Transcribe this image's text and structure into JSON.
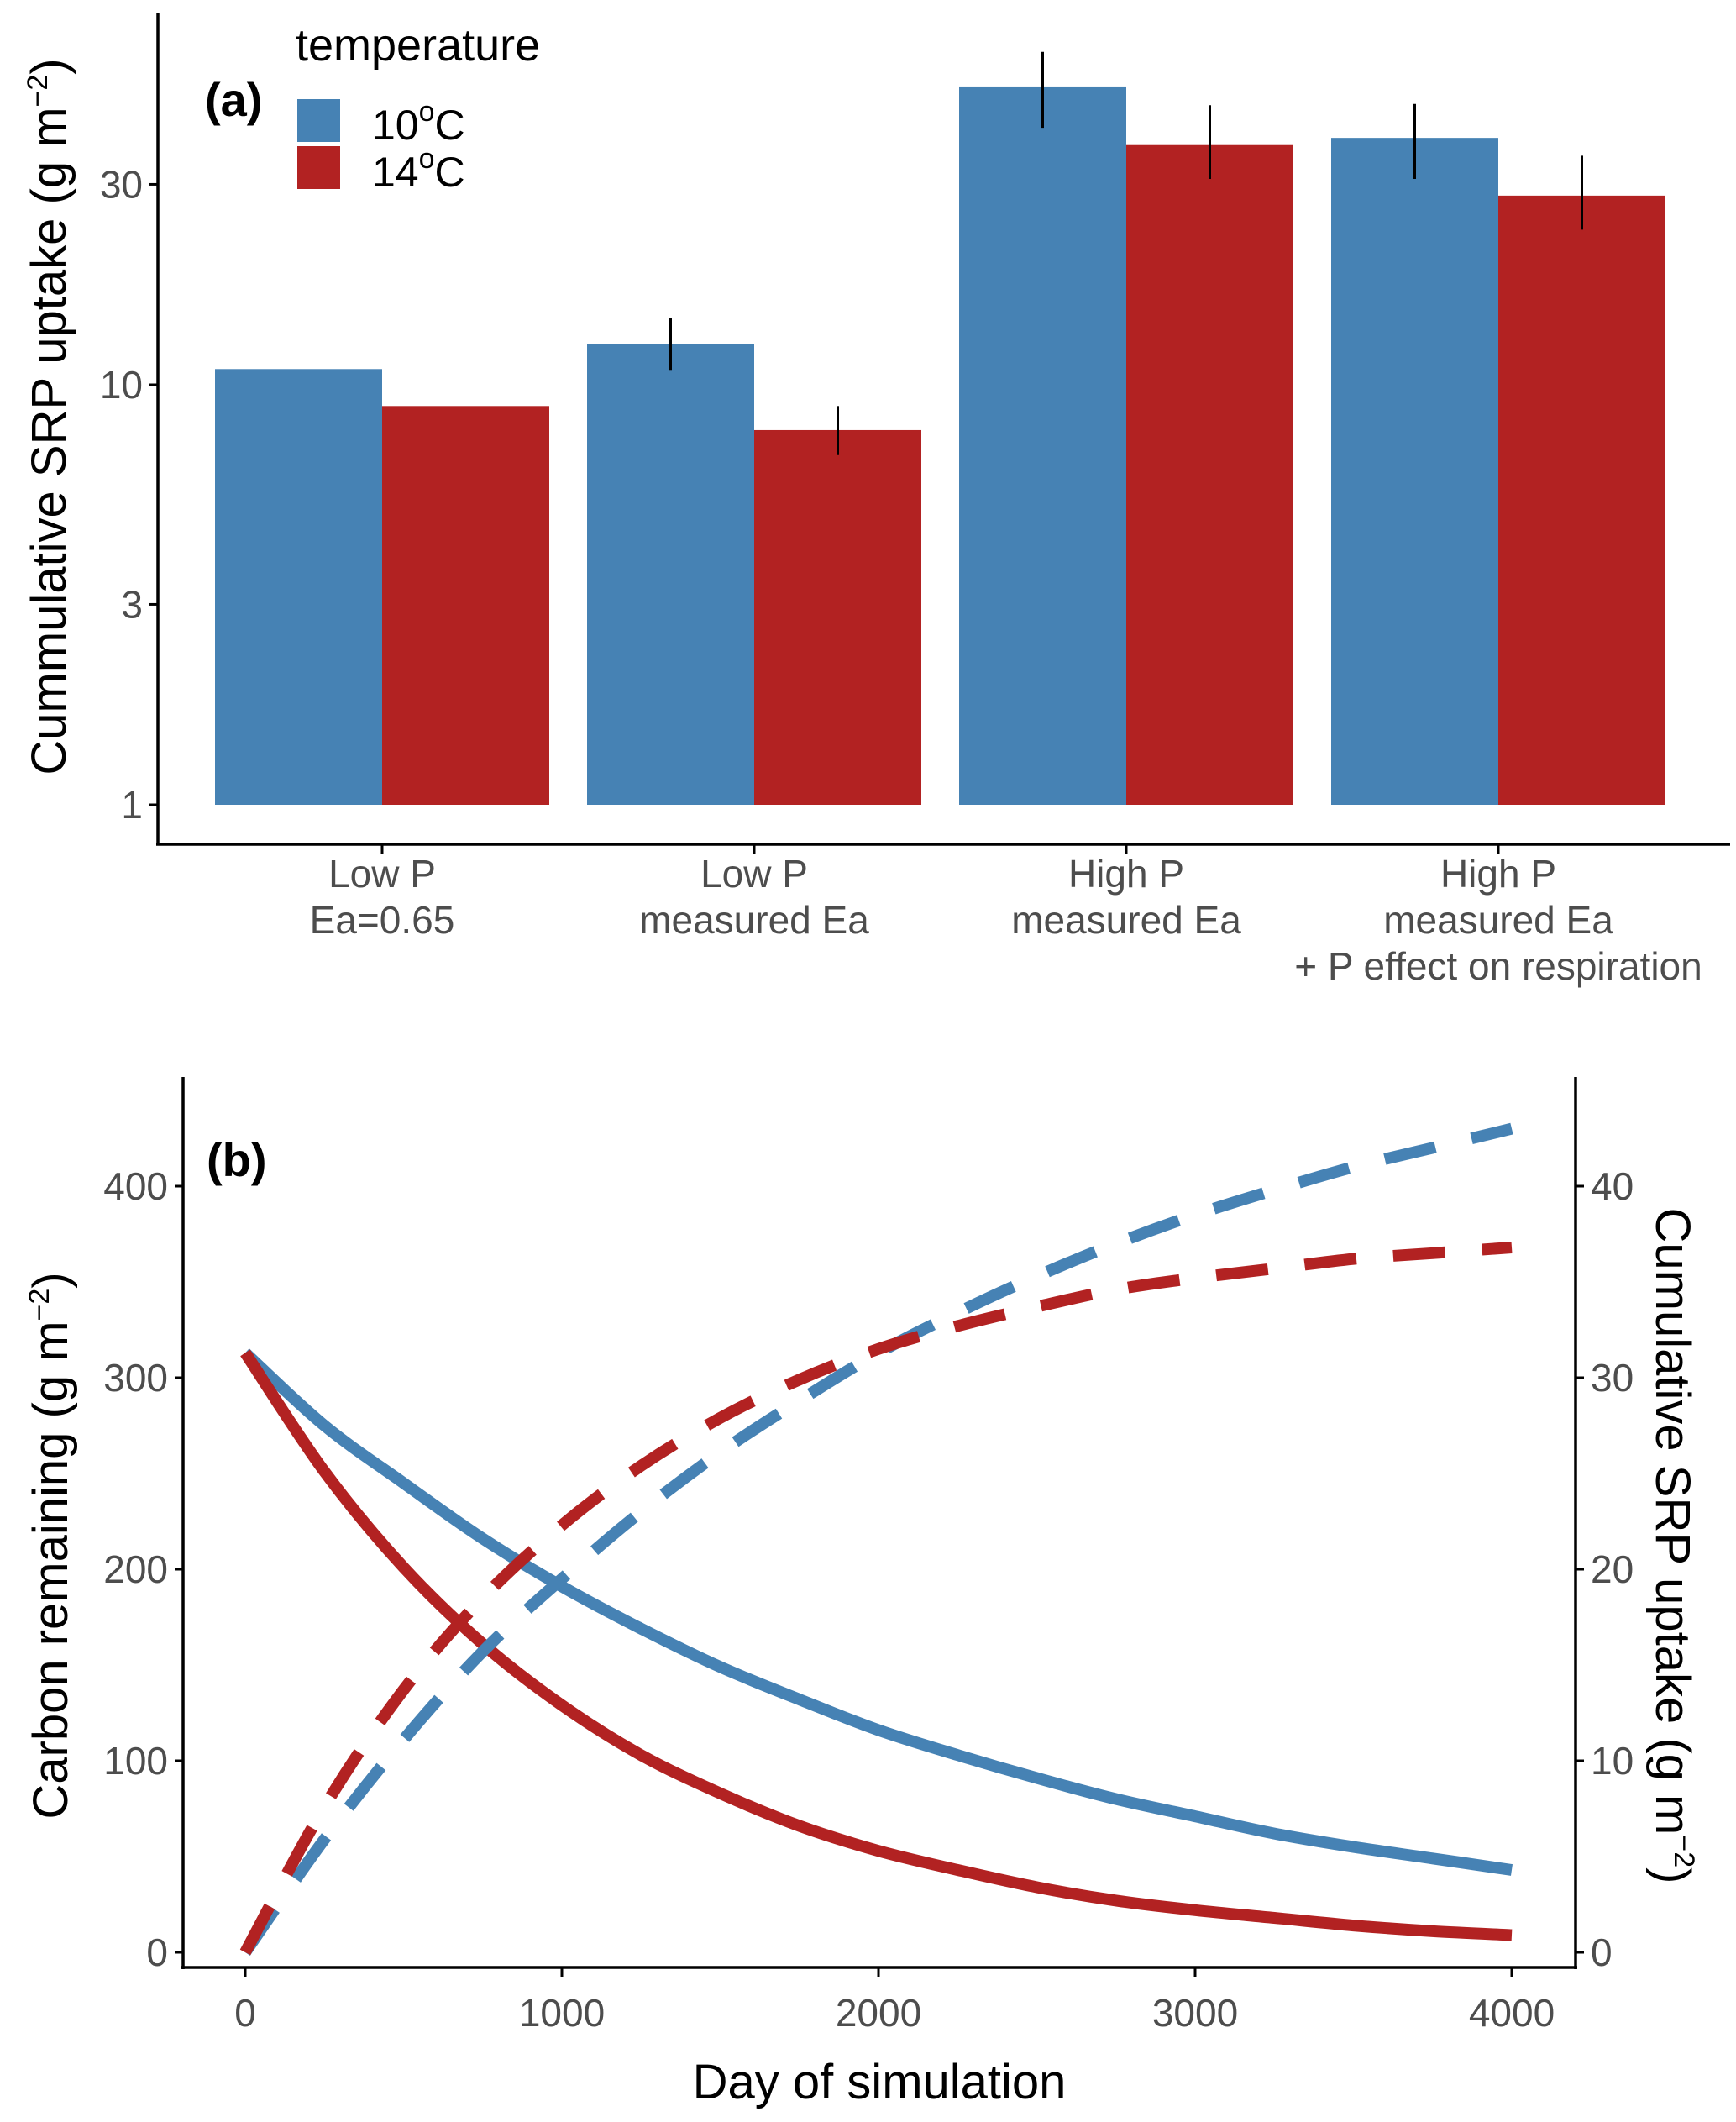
{
  "figure": {
    "panels": [
      "(a)",
      "(b)"
    ]
  },
  "colors": {
    "temp_10": "#4682B4",
    "temp_14": "#B22222",
    "axis": "#000000",
    "tick_text": "#4d4d4d"
  },
  "chart_data": [
    {
      "type": "bar",
      "panel_label": "(a)",
      "title": "",
      "xlabel": "",
      "ylabel": "Cummulative SRP uptake (g m",
      "ylabel_sup": "−2",
      "ylabel_suffix": ")",
      "yscale": "log10",
      "ylim": [
        0.85,
        75
      ],
      "yticks": [
        1,
        3,
        10,
        30
      ],
      "ytick_labels": [
        "1",
        "3",
        "10",
        "30"
      ],
      "bar_base": 1,
      "categories": [
        [
          "Low P",
          "Ea=0.65"
        ],
        [
          "Low P",
          "measured Ea"
        ],
        [
          "High P",
          "measured Ea"
        ],
        [
          "High P",
          "measured Ea",
          "+ P effect on respiration"
        ]
      ],
      "legend": {
        "title": "temperature",
        "position": "top-left",
        "entries": [
          {
            "label": "10",
            "sup": "o",
            "suffix": "C",
            "color_key": "temp_10"
          },
          {
            "label": "14",
            "sup": "o",
            "suffix": "C",
            "color_key": "temp_14"
          }
        ]
      },
      "series": [
        {
          "name": "10°C",
          "color_key": "temp_10",
          "values": [
            10.9,
            12.5,
            51.3,
            38.7
          ],
          "error_low": [
            null,
            10.8,
            40.9,
            30.9
          ],
          "error_high": [
            null,
            14.4,
            62.0,
            46.6
          ]
        },
        {
          "name": "14°C",
          "color_key": "temp_14",
          "values": [
            8.9,
            7.8,
            37.2,
            28.2
          ],
          "error_low": [
            null,
            6.8,
            30.9,
            23.4
          ],
          "error_high": [
            null,
            8.9,
            46.3,
            35.1
          ]
        }
      ]
    },
    {
      "type": "line",
      "panel_label": "(b)",
      "title": "",
      "xlabel": "Day of simulation",
      "ylabel": "Carbon remaining (g m",
      "ylabel_sup": "−2",
      "ylabel_suffix": ")",
      "y2label": "Cumulative SRP uptake (g m",
      "y2label_sup": "−2",
      "y2label_suffix": ")",
      "xlim": [
        -250,
        4250
      ],
      "ylim": [
        -40,
        460
      ],
      "y2lim": [
        -4,
        46
      ],
      "xticks": [
        0,
        1000,
        2000,
        3000,
        4000
      ],
      "xtick_labels": [
        "0",
        "1000",
        "2000",
        "3000",
        "4000"
      ],
      "yticks": [
        0,
        100,
        200,
        300,
        400
      ],
      "ytick_labels": [
        "0",
        "100",
        "200",
        "300",
        "400"
      ],
      "y2ticks": [
        0,
        10,
        20,
        30,
        40
      ],
      "y2tick_labels": [
        "0",
        "10",
        "20",
        "30",
        "40"
      ],
      "x": [
        0,
        250,
        500,
        750,
        1000,
        1250,
        1500,
        1750,
        2000,
        2250,
        2500,
        2750,
        3000,
        3250,
        3500,
        3750,
        4000
      ],
      "series": [
        {
          "name": "Carbon remaining 10°C",
          "axis": "left",
          "style": "solid",
          "color_key": "temp_10",
          "values": [
            313,
            275,
            245,
            216,
            191,
            169,
            149,
            132,
            116,
            103,
            91,
            80,
            71,
            62,
            55,
            49,
            43
          ]
        },
        {
          "name": "Carbon remaining 14°C",
          "axis": "left",
          "style": "solid",
          "color_key": "temp_14",
          "values": [
            313,
            251,
            201,
            161,
            129,
            103,
            83,
            66,
            53,
            43,
            34,
            27,
            22,
            18,
            14,
            11,
            9
          ]
        },
        {
          "name": "Cumulative SRP uptake 10°C",
          "axis": "right",
          "style": "dashed",
          "color_key": "temp_10",
          "values": [
            0,
            5.9,
            11.1,
            15.7,
            19.5,
            23.0,
            26.1,
            28.8,
            31.3,
            33.4,
            35.3,
            37.0,
            38.5,
            39.8,
            41.0,
            42.0,
            43.0
          ]
        },
        {
          "name": "Cumulative SRP uptake 14°C",
          "axis": "right",
          "style": "dashed",
          "color_key": "temp_14",
          "values": [
            0,
            7.6,
            13.7,
            18.5,
            22.3,
            25.4,
            27.9,
            29.9,
            31.5,
            32.7,
            33.7,
            34.6,
            35.2,
            35.7,
            36.2,
            36.5,
            36.8
          ]
        }
      ]
    }
  ]
}
